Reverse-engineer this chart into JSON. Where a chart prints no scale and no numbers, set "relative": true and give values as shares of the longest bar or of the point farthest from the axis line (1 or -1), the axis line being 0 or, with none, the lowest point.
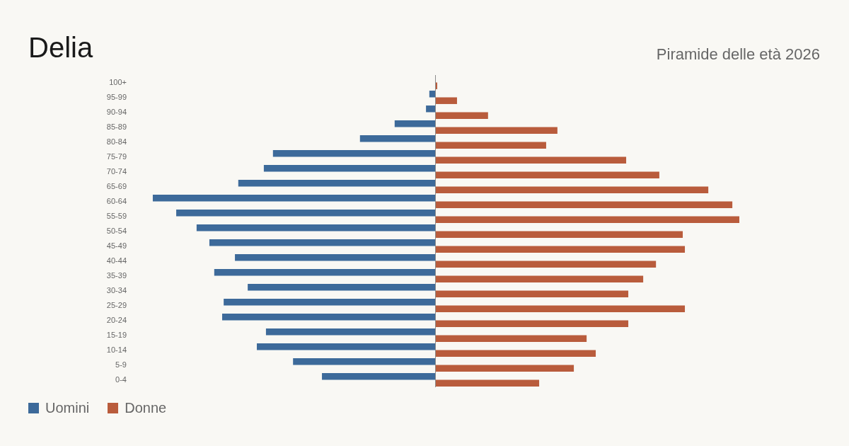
{
  "chart_data": {
    "type": "bar",
    "title": "Delia",
    "subtitle": "Piramide delle età 2026",
    "orientation": "horizontal",
    "relative": true,
    "legend": "bottom left",
    "categories": [
      "100+",
      "95-99",
      "90-94",
      "85-89",
      "80-84",
      "75-79",
      "70-74",
      "65-69",
      "60-64",
      "55-59",
      "50-54",
      "45-49",
      "40-44",
      "35-39",
      "30-34",
      "25-29",
      "20-24",
      "15-19",
      "10-14",
      "5-9",
      "0-4"
    ],
    "series": [
      {
        "name": "Uomini",
        "color": "#3d6a9a",
        "values": [
          0,
          -0.019,
          -0.03,
          -0.133,
          -0.247,
          -0.533,
          -0.563,
          -0.647,
          -0.928,
          -0.851,
          -0.784,
          -0.742,
          -0.658,
          -0.726,
          -0.616,
          -0.695,
          -0.7,
          -0.556,
          -0.586,
          -0.467,
          -0.372
        ]
      },
      {
        "name": "Donne",
        "color": "#b95c3c",
        "values": [
          0.007,
          0.072,
          0.174,
          0.402,
          0.365,
          0.628,
          0.737,
          0.898,
          0.977,
          1,
          0.814,
          0.821,
          0.726,
          0.684,
          0.635,
          0.821,
          0.635,
          0.498,
          0.528,
          0.456,
          0.342
        ]
      }
    ]
  }
}
